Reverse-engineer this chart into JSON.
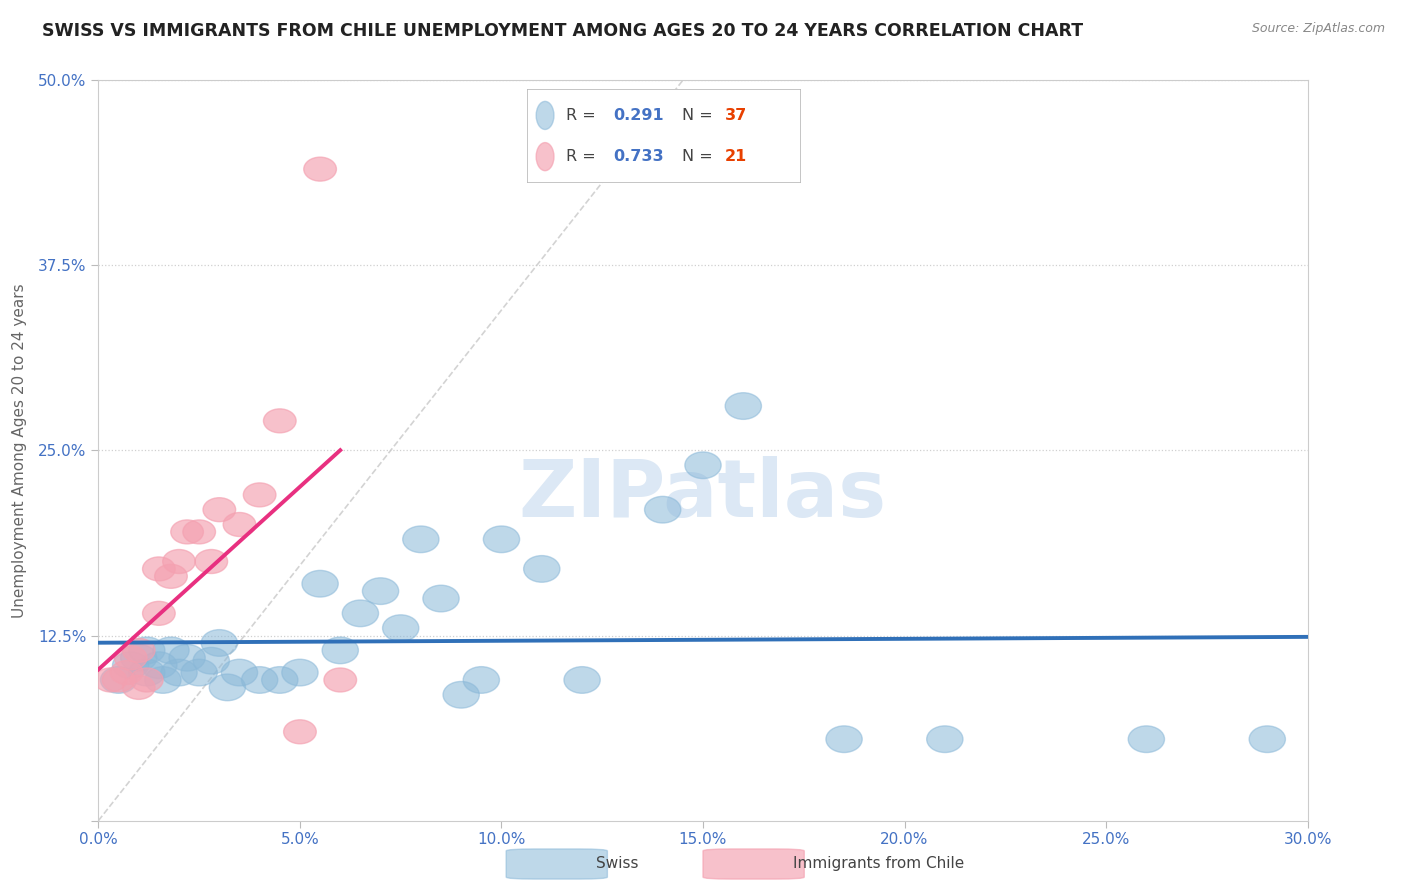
{
  "title": "SWISS VS IMMIGRANTS FROM CHILE UNEMPLOYMENT AMONG AGES 20 TO 24 YEARS CORRELATION CHART",
  "source": "Source: ZipAtlas.com",
  "ylabel_label": "Unemployment Among Ages 20 to 24 years",
  "xlim": [
    0.0,
    0.3
  ],
  "ylim": [
    0.0,
    0.5
  ],
  "xticks": [
    0.0,
    0.05,
    0.1,
    0.15,
    0.2,
    0.25,
    0.3
  ],
  "xticklabels": [
    "0.0%",
    "5.0%",
    "10.0%",
    "15.0%",
    "20.0%",
    "25.0%",
    "30.0%"
  ],
  "yticks": [
    0.0,
    0.125,
    0.25,
    0.375,
    0.5
  ],
  "yticklabels": [
    "",
    "12.5%",
    "25.0%",
    "37.5%",
    "50.0%"
  ],
  "swiss_x": [
    0.005,
    0.008,
    0.01,
    0.012,
    0.012,
    0.015,
    0.016,
    0.018,
    0.02,
    0.022,
    0.025,
    0.028,
    0.03,
    0.032,
    0.035,
    0.04,
    0.045,
    0.05,
    0.055,
    0.06,
    0.065,
    0.07,
    0.075,
    0.08,
    0.085,
    0.09,
    0.095,
    0.1,
    0.11,
    0.12,
    0.14,
    0.15,
    0.16,
    0.185,
    0.21,
    0.26,
    0.29
  ],
  "swiss_y": [
    0.095,
    0.105,
    0.11,
    0.1,
    0.115,
    0.105,
    0.095,
    0.115,
    0.1,
    0.11,
    0.1,
    0.108,
    0.12,
    0.09,
    0.1,
    0.095,
    0.095,
    0.1,
    0.16,
    0.115,
    0.14,
    0.155,
    0.13,
    0.19,
    0.15,
    0.085,
    0.095,
    0.19,
    0.17,
    0.095,
    0.21,
    0.24,
    0.28,
    0.055,
    0.055,
    0.055,
    0.055
  ],
  "chile_x": [
    0.003,
    0.005,
    0.007,
    0.008,
    0.01,
    0.01,
    0.012,
    0.015,
    0.015,
    0.018,
    0.02,
    0.022,
    0.025,
    0.028,
    0.03,
    0.035,
    0.04,
    0.045,
    0.05,
    0.055,
    0.06
  ],
  "chile_y": [
    0.095,
    0.095,
    0.1,
    0.11,
    0.09,
    0.115,
    0.095,
    0.14,
    0.17,
    0.165,
    0.175,
    0.195,
    0.195,
    0.175,
    0.21,
    0.2,
    0.22,
    0.27,
    0.06,
    0.44,
    0.095
  ],
  "swiss_R": "0.291",
  "swiss_N": "37",
  "chile_R": "0.733",
  "chile_N": "21",
  "swiss_color": "#8ab8d8",
  "chile_color": "#f4a0b0",
  "swiss_line_color": "#3070b8",
  "chile_line_color": "#e83080",
  "ref_line_color": "#c8c8c8",
  "grid_color": "#d0d0d0",
  "title_color": "#222222",
  "axis_label_color": "#4472c4",
  "tick_color": "#4472c4",
  "watermark_text": "ZIPatlas",
  "watermark_color": "#dce8f5",
  "legend_R_color": "#4472c4",
  "legend_N_color": "#e84000",
  "source_color": "#888888"
}
